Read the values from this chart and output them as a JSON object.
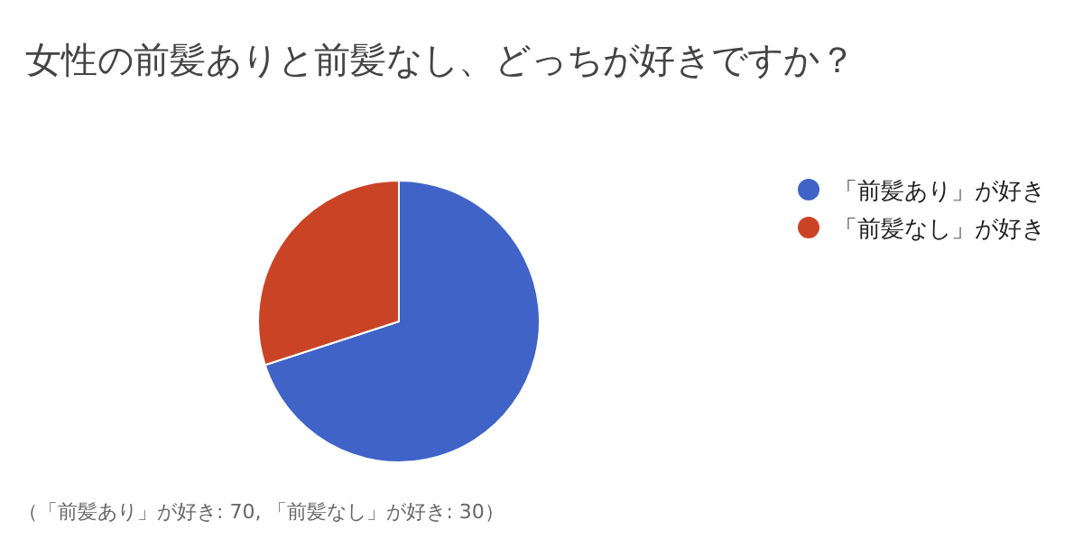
{
  "chart_data": {
    "type": "pie",
    "title": "女性の前髪ありと前髪なし、どっちが好きですか？",
    "categories": [
      "「前髪あり」が好き",
      "「前髪なし」が好き"
    ],
    "values": [
      70,
      30
    ],
    "colors": [
      "#3f63c7",
      "#cb4325"
    ],
    "legend": "right",
    "annotations": [
      "（「前髪あり」が好き: 70, 「前髪なし」が好き: 30）"
    ]
  }
}
